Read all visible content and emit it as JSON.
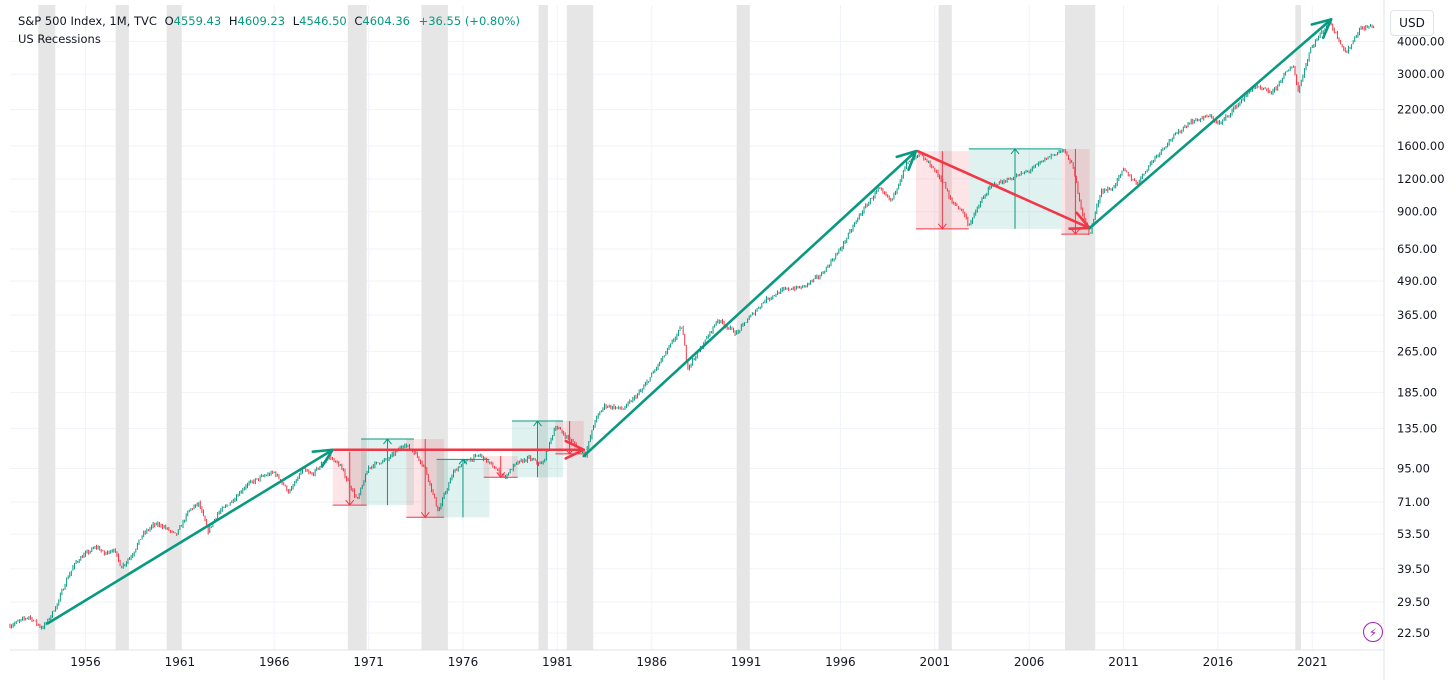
{
  "legend": {
    "symbol": "S&P 500 Index, 1M, TVC",
    "open_label": "O",
    "open": "4559.43",
    "high_label": "H",
    "high": "4609.23",
    "low_label": "L",
    "low": "4546.50",
    "close_label": "C",
    "close": "4604.36",
    "change": "+36.55 (+0.80%)",
    "recessions_label": "US Recessions"
  },
  "currency": "USD",
  "colors": {
    "up": "#089981",
    "down": "#f23645",
    "recession": "#e6e6e6",
    "grid": "#f0f3fa",
    "accent": "#9c27b0"
  },
  "chart_data": {
    "type": "line",
    "title": "",
    "scale": "log",
    "xlim": [
      1952.0,
      2024.8
    ],
    "ylim": [
      19.4,
      5500
    ],
    "x_ticks": [
      1956,
      1961,
      1966,
      1971,
      1976,
      1981,
      1986,
      1991,
      1996,
      2001,
      2006,
      2011,
      2016,
      2021
    ],
    "y_ticks": [
      4000,
      3000,
      2200,
      1600,
      1200,
      900,
      650,
      490,
      365,
      265,
      185,
      135,
      95,
      71,
      53.5,
      39.5,
      29.5,
      22.5
    ],
    "y_tick_labels": [
      "4000.00",
      "3000.00",
      "2200.00",
      "1600.00",
      "1200.00",
      "900.00",
      "650.00",
      "490.00",
      "365.00",
      "265.00",
      "185.00",
      "135.00",
      "95.00",
      "71.00",
      "53.50",
      "39.50",
      "29.50",
      "22.50"
    ],
    "grid": true,
    "series": [
      {
        "values": [
          [
            1952.0,
            24
          ],
          [
            1952.5,
            25
          ],
          [
            1953.0,
            26
          ],
          [
            1953.7,
            23.5
          ],
          [
            1954.0,
            25
          ],
          [
            1954.5,
            29
          ],
          [
            1955.0,
            36
          ],
          [
            1955.5,
            42
          ],
          [
            1956.0,
            45
          ],
          [
            1956.6,
            48
          ],
          [
            1957.0,
            45
          ],
          [
            1957.5,
            47
          ],
          [
            1957.9,
            40
          ],
          [
            1958.5,
            45
          ],
          [
            1959.0,
            53
          ],
          [
            1959.6,
            58
          ],
          [
            1960.0,
            58
          ],
          [
            1960.8,
            53
          ],
          [
            1961.5,
            66
          ],
          [
            1962.0,
            70
          ],
          [
            1962.5,
            55
          ],
          [
            1963.0,
            64
          ],
          [
            1963.8,
            72
          ],
          [
            1964.5,
            82
          ],
          [
            1965.3,
            88
          ],
          [
            1966.0,
            92
          ],
          [
            1966.8,
            77
          ],
          [
            1967.5,
            94
          ],
          [
            1968.0,
            90
          ],
          [
            1968.9,
            106
          ],
          [
            1969.5,
            97
          ],
          [
            1970.4,
            72
          ],
          [
            1971.0,
            96
          ],
          [
            1971.5,
            100
          ],
          [
            1972.0,
            103
          ],
          [
            1972.9,
            118
          ],
          [
            1973.5,
            108
          ],
          [
            1974.0,
            95
          ],
          [
            1974.7,
            65
          ],
          [
            1975.0,
            75
          ],
          [
            1975.5,
            92
          ],
          [
            1976.0,
            100
          ],
          [
            1976.9,
            107
          ],
          [
            1977.5,
            98
          ],
          [
            1978.2,
            88
          ],
          [
            1978.8,
            99
          ],
          [
            1979.5,
            104
          ],
          [
            1980.2,
            98
          ],
          [
            1980.9,
            138
          ],
          [
            1981.5,
            125
          ],
          [
            1982.5,
            108
          ],
          [
            1983.0,
            145
          ],
          [
            1983.5,
            165
          ],
          [
            1984.5,
            160
          ],
          [
            1985.5,
            190
          ],
          [
            1986.5,
            245
          ],
          [
            1987.6,
            330
          ],
          [
            1987.9,
            230
          ],
          [
            1988.5,
            265
          ],
          [
            1989.5,
            350
          ],
          [
            1990.5,
            310
          ],
          [
            1991.0,
            345
          ],
          [
            1992.0,
            415
          ],
          [
            1993.0,
            455
          ],
          [
            1994.0,
            465
          ],
          [
            1995.0,
            520
          ],
          [
            1996.0,
            650
          ],
          [
            1997.0,
            870
          ],
          [
            1998.0,
            1100
          ],
          [
            1998.7,
            990
          ],
          [
            1999.5,
            1370
          ],
          [
            2000.2,
            1480
          ],
          [
            2000.8,
            1350
          ],
          [
            2001.5,
            1150
          ],
          [
            2001.8,
            1000
          ],
          [
            2002.5,
            900
          ],
          [
            2002.8,
            800
          ],
          [
            2003.5,
            1000
          ],
          [
            2004.0,
            1130
          ],
          [
            2005.0,
            1200
          ],
          [
            2006.0,
            1290
          ],
          [
            2007.0,
            1450
          ],
          [
            2007.8,
            1550
          ],
          [
            2008.3,
            1350
          ],
          [
            2008.8,
            900
          ],
          [
            2009.2,
            735
          ],
          [
            2009.8,
            1080
          ],
          [
            2010.4,
            1100
          ],
          [
            2011.0,
            1300
          ],
          [
            2011.7,
            1150
          ],
          [
            2012.5,
            1400
          ],
          [
            2013.5,
            1700
          ],
          [
            2014.5,
            1970
          ],
          [
            2015.5,
            2080
          ],
          [
            2016.1,
            1940
          ],
          [
            2016.9,
            2240
          ],
          [
            2017.9,
            2690
          ],
          [
            2018.9,
            2550
          ],
          [
            2019.5,
            2980
          ],
          [
            2020.0,
            3230
          ],
          [
            2020.25,
            2580
          ],
          [
            2020.9,
            3750
          ],
          [
            2021.9,
            4770
          ],
          [
            2022.8,
            3600
          ],
          [
            2023.5,
            4450
          ],
          [
            2024.3,
            4604
          ]
        ]
      }
    ],
    "recessions": [
      [
        1953.5,
        1954.4
      ],
      [
        1957.6,
        1958.3
      ],
      [
        1960.3,
        1961.1
      ],
      [
        1969.9,
        1970.9
      ],
      [
        1973.8,
        1975.2
      ],
      [
        1980.0,
        1980.5
      ],
      [
        1981.5,
        1982.9
      ],
      [
        1990.5,
        1991.2
      ],
      [
        2001.2,
        2001.9
      ],
      [
        2007.9,
        2009.5
      ],
      [
        2020.1,
        2020.4
      ]
    ],
    "trend_arrows": [
      {
        "color": "up",
        "from": [
          1954.0,
          24.5
        ],
        "to": [
          1969.1,
          112
        ]
      },
      {
        "color": "down",
        "from": [
          1969.2,
          112
        ],
        "to": [
          1982.4,
          112
        ]
      },
      {
        "color": "up",
        "from": [
          1982.4,
          106
        ],
        "to": [
          2000.0,
          1530
        ]
      },
      {
        "color": "down",
        "from": [
          2000.1,
          1530
        ],
        "to": [
          2009.2,
          780
        ]
      },
      {
        "color": "up",
        "from": [
          2009.2,
          780
        ],
        "to": [
          2022.0,
          4850
        ]
      }
    ],
    "range_boxes": [
      {
        "type": "down",
        "x": [
          1969.1,
          1970.9
        ],
        "y": [
          69,
          110
        ]
      },
      {
        "type": "up",
        "x": [
          1970.6,
          1973.4
        ],
        "y": [
          69,
          123
        ]
      },
      {
        "type": "down",
        "x": [
          1973.0,
          1975.0
        ],
        "y": [
          62,
          123
        ]
      },
      {
        "type": "up",
        "x": [
          1974.6,
          1977.4
        ],
        "y": [
          62,
          103
        ]
      },
      {
        "type": "down",
        "x": [
          1977.1,
          1978.9
        ],
        "y": [
          88,
          106
        ]
      },
      {
        "type": "up",
        "x": [
          1978.6,
          1981.3
        ],
        "y": [
          88,
          144
        ]
      },
      {
        "type": "down",
        "x": [
          1980.9,
          1982.4
        ],
        "y": [
          108,
          144
        ]
      },
      {
        "type": "down",
        "x": [
          2000.0,
          2002.8
        ],
        "y": [
          775,
          1530
        ]
      },
      {
        "type": "up",
        "x": [
          2002.8,
          2007.7
        ],
        "y": [
          775,
          1560
        ]
      },
      {
        "type": "down",
        "x": [
          2007.7,
          2009.2
        ],
        "y": [
          740,
          1560
        ]
      }
    ]
  }
}
